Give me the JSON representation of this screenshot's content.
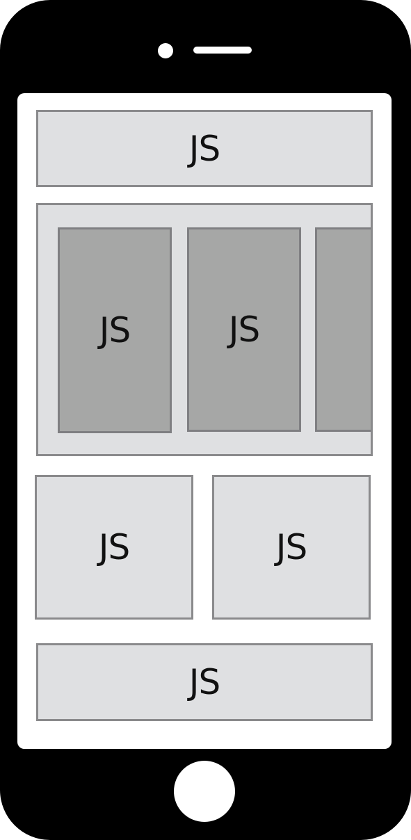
{
  "header": {
    "label": "JS"
  },
  "carousel": {
    "cards": [
      {
        "label": "JS"
      },
      {
        "label": "JS"
      },
      {
        "label": ""
      }
    ]
  },
  "tiles": {
    "left": {
      "label": "JS"
    },
    "right": {
      "label": "JS"
    }
  },
  "footer": {
    "label": "JS"
  },
  "colors": {
    "phone_body": "#000000",
    "screen": "#ffffff",
    "block_fill": "#dfe0e2",
    "card_fill": "#a6a7a6",
    "border": "#8a8a8c"
  }
}
